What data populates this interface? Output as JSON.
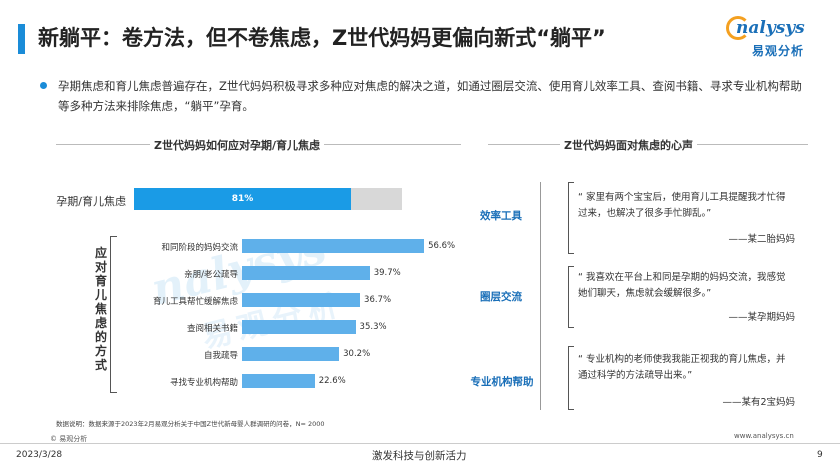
{
  "header": {
    "title": "新躺平：卷方法，但不卷焦虑，Z世代妈妈更偏向新式“躺平”",
    "logo_text": "nalysys",
    "logo_sub": "易观分析"
  },
  "intro": {
    "text": "孕期焦虑和育儿焦虑普遍存在，Z世代妈妈积极寻求多种应对焦虑的解决之道，如通过圈层交流、使用育儿效率工具、查阅书籍、寻求专业机构帮助等多种方法来排除焦虑，“躺平”孕育。"
  },
  "left_panel": {
    "title": "Z世代妈妈如何应对孕期/育儿焦虑",
    "vertical_label": "应对育儿焦虑的方式",
    "main_bar_label": "孕期/育儿焦虑",
    "main_bar_pct_label": "81%"
  },
  "right_panel": {
    "title": "Z世代妈妈面对焦虑的心声",
    "quotes": [
      {
        "tag": "效率工具",
        "text": "“ 家里有两个宝宝后，使用育儿工具提醒我才忙得过来，也解决了很多手忙脚乱。”",
        "author": "——某二胎妈妈"
      },
      {
        "tag": "圈层交流",
        "text": "“ 我喜欢在平台上和同是孕期的妈妈交流，我感觉她们聊天，焦虑就会缓解很多。”",
        "author": "——某孕期妈妈"
      },
      {
        "tag": "专业机构帮助",
        "text": "“ 专业机构的老师使我我能正视我的育儿焦虑，并通过科学的方法疏导出来。”",
        "author": "——某有2宝妈妈"
      }
    ]
  },
  "chart_data": {
    "type": "bar",
    "title": "Z世代妈妈如何应对孕期/育儿焦虑",
    "main": {
      "category": "孕期/育儿焦虑",
      "value": 81,
      "label": "81%"
    },
    "categories": [
      "和同阶段的妈妈交流",
      "亲朋/老公疏导",
      "育儿工具帮忙缓解焦虑",
      "查阅相关书籍",
      "自我疏导",
      "寻找专业机构帮助"
    ],
    "values": [
      56.6,
      39.7,
      36.7,
      35.3,
      30.2,
      22.6
    ],
    "value_labels": [
      "56.6%",
      "39.7%",
      "36.7%",
      "35.3%",
      "30.2%",
      "22.6%"
    ],
    "unit": "%",
    "ylabel": "应对育儿焦虑的方式"
  },
  "footer": {
    "source": "数据说明：数据来源于2023年2月易观分析关于中国Z世代新母婴人群调研的问卷，N= 2000",
    "copyright": "© 易观分析",
    "url": "www.analysys.cn",
    "date": "2023/3/28",
    "slogan": "激发科技与创新活力",
    "page": "9"
  }
}
